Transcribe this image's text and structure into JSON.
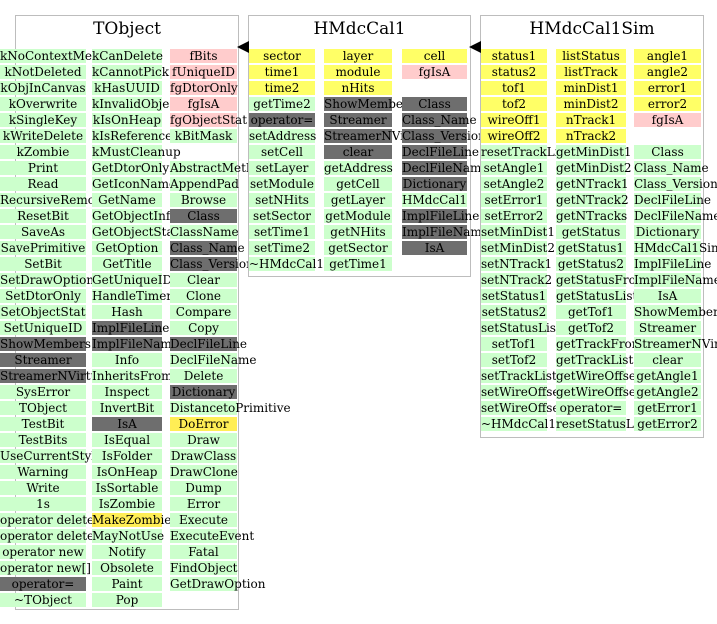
{
  "classes": [
    {
      "name": "TObject",
      "columns": [
        [
          {
            "t": "kNoContextMenu",
            "c": "green"
          },
          {
            "t": "kNotDeleted",
            "c": "green"
          },
          {
            "t": "kObjInCanvas",
            "c": "green"
          },
          {
            "t": "kOverwrite",
            "c": "green"
          },
          {
            "t": "kSingleKey",
            "c": "green"
          },
          {
            "t": "kWriteDelete",
            "c": "green"
          },
          {
            "t": "kZombie",
            "c": "green"
          },
          {
            "t": "Print",
            "c": "green"
          },
          {
            "t": "Read",
            "c": "green"
          },
          {
            "t": "RecursiveRemove",
            "c": "green"
          },
          {
            "t": "ResetBit",
            "c": "green"
          },
          {
            "t": "SaveAs",
            "c": "green"
          },
          {
            "t": "SavePrimitive",
            "c": "green"
          },
          {
            "t": "SetBit",
            "c": "green"
          },
          {
            "t": "SetDrawOption",
            "c": "green"
          },
          {
            "t": "SetDtorOnly",
            "c": "green"
          },
          {
            "t": "SetObjectStat",
            "c": "green"
          },
          {
            "t": "SetUniqueID",
            "c": "green"
          },
          {
            "t": "ShowMembers",
            "c": "grey"
          },
          {
            "t": "Streamer",
            "c": "grey"
          },
          {
            "t": "StreamerNVirtual",
            "c": "grey"
          },
          {
            "t": "SysError",
            "c": "green"
          },
          {
            "t": "TObject",
            "c": "green"
          },
          {
            "t": "TestBit",
            "c": "green"
          },
          {
            "t": "TestBits",
            "c": "green"
          },
          {
            "t": "UseCurrentStyle",
            "c": "green"
          },
          {
            "t": "Warning",
            "c": "green"
          },
          {
            "t": "Write",
            "c": "green"
          },
          {
            "t": "1s",
            "c": "green"
          },
          {
            "t": "operator delete",
            "c": "green"
          },
          {
            "t": "operator delete[]",
            "c": "green"
          },
          {
            "t": "operator new",
            "c": "green"
          },
          {
            "t": "operator new[]",
            "c": "green"
          },
          {
            "t": "operator=",
            "c": "grey"
          },
          {
            "t": "~TObject",
            "c": "green"
          }
        ],
        [
          {
            "t": "kCanDelete",
            "c": "green"
          },
          {
            "t": "kCannotPick",
            "c": "green"
          },
          {
            "t": "kHasUUID",
            "c": "green"
          },
          {
            "t": "kInvalidObject",
            "c": "green"
          },
          {
            "t": "kIsOnHeap",
            "c": "green"
          },
          {
            "t": "kIsReferenced",
            "c": "green"
          },
          {
            "t": "kMustCleanup",
            "c": "green"
          },
          {
            "t": "GetDtorOnly",
            "c": "green"
          },
          {
            "t": "GetIconName",
            "c": "green"
          },
          {
            "t": "GetName",
            "c": "green"
          },
          {
            "t": "GetObjectInfo",
            "c": "green"
          },
          {
            "t": "GetObjectStat",
            "c": "green"
          },
          {
            "t": "GetOption",
            "c": "green"
          },
          {
            "t": "GetTitle",
            "c": "green"
          },
          {
            "t": "GetUniqueID",
            "c": "green"
          },
          {
            "t": "HandleTimer",
            "c": "green"
          },
          {
            "t": "Hash",
            "c": "green"
          },
          {
            "t": "ImplFileLine",
            "c": "grey"
          },
          {
            "t": "ImplFileName",
            "c": "grey"
          },
          {
            "t": "Info",
            "c": "green"
          },
          {
            "t": "InheritsFrom",
            "c": "green"
          },
          {
            "t": "Inspect",
            "c": "green"
          },
          {
            "t": "InvertBit",
            "c": "green"
          },
          {
            "t": "IsA",
            "c": "grey"
          },
          {
            "t": "IsEqual",
            "c": "green"
          },
          {
            "t": "IsFolder",
            "c": "green"
          },
          {
            "t": "IsOnHeap",
            "c": "green"
          },
          {
            "t": "IsSortable",
            "c": "green"
          },
          {
            "t": "IsZombie",
            "c": "green"
          },
          {
            "t": "MakeZombie",
            "c": "orange"
          },
          {
            "t": "MayNotUse",
            "c": "green"
          },
          {
            "t": "Notify",
            "c": "green"
          },
          {
            "t": "Obsolete",
            "c": "green"
          },
          {
            "t": "Paint",
            "c": "green"
          },
          {
            "t": "Pop",
            "c": "green"
          }
        ],
        [
          {
            "t": "fBits",
            "c": "pink"
          },
          {
            "t": "fUniqueID",
            "c": "pink"
          },
          {
            "t": "fgDtorOnly",
            "c": "pink"
          },
          {
            "t": "fgIsA",
            "c": "pink"
          },
          {
            "t": "fgObjectStat",
            "c": "pink"
          },
          {
            "t": "kBitMask",
            "c": "green"
          },
          {
            "t": "",
            "c": "blank"
          },
          {
            "t": "AbstractMethod",
            "c": "green"
          },
          {
            "t": "AppendPad",
            "c": "green"
          },
          {
            "t": "Browse",
            "c": "green"
          },
          {
            "t": "Class",
            "c": "grey"
          },
          {
            "t": "ClassName",
            "c": "green"
          },
          {
            "t": "Class_Name",
            "c": "grey"
          },
          {
            "t": "Class_Version",
            "c": "grey"
          },
          {
            "t": "Clear",
            "c": "green"
          },
          {
            "t": "Clone",
            "c": "green"
          },
          {
            "t": "Compare",
            "c": "green"
          },
          {
            "t": "Copy",
            "c": "green"
          },
          {
            "t": "DeclFileLine",
            "c": "grey"
          },
          {
            "t": "DeclFileName",
            "c": "green"
          },
          {
            "t": "Delete",
            "c": "green"
          },
          {
            "t": "Dictionary",
            "c": "grey"
          },
          {
            "t": "DistancetoPrimitive",
            "c": "green"
          },
          {
            "t": "DoError",
            "c": "orange"
          },
          {
            "t": "Draw",
            "c": "green"
          },
          {
            "t": "DrawClass",
            "c": "green"
          },
          {
            "t": "DrawClone",
            "c": "green"
          },
          {
            "t": "Dump",
            "c": "green"
          },
          {
            "t": "Error",
            "c": "green"
          },
          {
            "t": "Execute",
            "c": "green"
          },
          {
            "t": "ExecuteEvent",
            "c": "green"
          },
          {
            "t": "Fatal",
            "c": "green"
          },
          {
            "t": "FindObject",
            "c": "green"
          },
          {
            "t": "GetDrawOption",
            "c": "green"
          }
        ]
      ]
    },
    {
      "name": "HMdcCal1",
      "columns": [
        [
          {
            "t": "sector",
            "c": "yellow"
          },
          {
            "t": "time1",
            "c": "yellow"
          },
          {
            "t": "time2",
            "c": "yellow"
          },
          {
            "t": "getTime2",
            "c": "green"
          },
          {
            "t": "operator=",
            "c": "grey"
          },
          {
            "t": "setAddress",
            "c": "green"
          },
          {
            "t": "setCell",
            "c": "green"
          },
          {
            "t": "setLayer",
            "c": "green"
          },
          {
            "t": "setModule",
            "c": "green"
          },
          {
            "t": "setNHits",
            "c": "green"
          },
          {
            "t": "setSector",
            "c": "green"
          },
          {
            "t": "setTime1",
            "c": "green"
          },
          {
            "t": "setTime2",
            "c": "green"
          },
          {
            "t": "~HMdcCal1",
            "c": "green"
          }
        ],
        [
          {
            "t": "layer",
            "c": "yellow"
          },
          {
            "t": "module",
            "c": "yellow"
          },
          {
            "t": "nHits",
            "c": "yellow"
          },
          {
            "t": "ShowMembers",
            "c": "grey"
          },
          {
            "t": "Streamer",
            "c": "grey"
          },
          {
            "t": "StreamerNVirtual",
            "c": "grey"
          },
          {
            "t": "clear",
            "c": "grey"
          },
          {
            "t": "getAddress",
            "c": "green"
          },
          {
            "t": "getCell",
            "c": "green"
          },
          {
            "t": "getLayer",
            "c": "green"
          },
          {
            "t": "getModule",
            "c": "green"
          },
          {
            "t": "getNHits",
            "c": "green"
          },
          {
            "t": "getSector",
            "c": "green"
          },
          {
            "t": "getTime1",
            "c": "green"
          }
        ],
        [
          {
            "t": "cell",
            "c": "yellow"
          },
          {
            "t": "fgIsA",
            "c": "pink"
          },
          {
            "t": "",
            "c": "blank"
          },
          {
            "t": "Class",
            "c": "grey"
          },
          {
            "t": "Class_Name",
            "c": "grey"
          },
          {
            "t": "Class_Version",
            "c": "grey"
          },
          {
            "t": "DeclFileLine",
            "c": "grey"
          },
          {
            "t": "DeclFileName",
            "c": "grey"
          },
          {
            "t": "Dictionary",
            "c": "grey"
          },
          {
            "t": "HMdcCal1",
            "c": "green"
          },
          {
            "t": "ImplFileLine",
            "c": "grey"
          },
          {
            "t": "ImplFileName",
            "c": "grey"
          },
          {
            "t": "IsA",
            "c": "grey"
          }
        ]
      ]
    },
    {
      "name": "HMdcCal1Sim",
      "columns": [
        [
          {
            "t": "status1",
            "c": "yellow"
          },
          {
            "t": "status2",
            "c": "yellow"
          },
          {
            "t": "tof1",
            "c": "yellow"
          },
          {
            "t": "tof2",
            "c": "yellow"
          },
          {
            "t": "wireOff1",
            "c": "yellow"
          },
          {
            "t": "wireOff2",
            "c": "yellow"
          },
          {
            "t": "resetTrackList",
            "c": "green"
          },
          {
            "t": "setAngle1",
            "c": "green"
          },
          {
            "t": "setAngle2",
            "c": "green"
          },
          {
            "t": "setError1",
            "c": "green"
          },
          {
            "t": "setError2",
            "c": "green"
          },
          {
            "t": "setMinDist1",
            "c": "green"
          },
          {
            "t": "setMinDist2",
            "c": "green"
          },
          {
            "t": "setNTrack1",
            "c": "green"
          },
          {
            "t": "setNTrack2",
            "c": "green"
          },
          {
            "t": "setStatus1",
            "c": "green"
          },
          {
            "t": "setStatus2",
            "c": "green"
          },
          {
            "t": "setStatusList",
            "c": "green"
          },
          {
            "t": "setTof1",
            "c": "green"
          },
          {
            "t": "setTof2",
            "c": "green"
          },
          {
            "t": "setTrackList",
            "c": "green"
          },
          {
            "t": "setWireOffset1",
            "c": "green"
          },
          {
            "t": "setWireOffset2",
            "c": "green"
          },
          {
            "t": "~HMdcCal1Sim",
            "c": "green"
          }
        ],
        [
          {
            "t": "listStatus",
            "c": "yellow"
          },
          {
            "t": "listTrack",
            "c": "yellow"
          },
          {
            "t": "minDist1",
            "c": "yellow"
          },
          {
            "t": "minDist2",
            "c": "yellow"
          },
          {
            "t": "nTrack1",
            "c": "yellow"
          },
          {
            "t": "nTrack2",
            "c": "yellow"
          },
          {
            "t": "getMinDist1",
            "c": "green"
          },
          {
            "t": "getMinDist2",
            "c": "green"
          },
          {
            "t": "getNTrack1",
            "c": "green"
          },
          {
            "t": "getNTrack2",
            "c": "green"
          },
          {
            "t": "getNTracks",
            "c": "green"
          },
          {
            "t": "getStatus",
            "c": "green"
          },
          {
            "t": "getStatus1",
            "c": "green"
          },
          {
            "t": "getStatus2",
            "c": "green"
          },
          {
            "t": "getStatusFromList",
            "c": "green"
          },
          {
            "t": "getStatusList",
            "c": "green"
          },
          {
            "t": "getTof1",
            "c": "green"
          },
          {
            "t": "getTof2",
            "c": "green"
          },
          {
            "t": "getTrackFromList",
            "c": "green"
          },
          {
            "t": "getTrackList",
            "c": "green"
          },
          {
            "t": "getWireOffset1",
            "c": "green"
          },
          {
            "t": "getWireOffset2",
            "c": "green"
          },
          {
            "t": "operator=",
            "c": "green"
          },
          {
            "t": "resetStatusList",
            "c": "green"
          }
        ],
        [
          {
            "t": "angle1",
            "c": "yellow"
          },
          {
            "t": "angle2",
            "c": "yellow"
          },
          {
            "t": "error1",
            "c": "yellow"
          },
          {
            "t": "error2",
            "c": "yellow"
          },
          {
            "t": "fgIsA",
            "c": "pink"
          },
          {
            "t": "",
            "c": "blank"
          },
          {
            "t": "Class",
            "c": "green"
          },
          {
            "t": "Class_Name",
            "c": "green"
          },
          {
            "t": "Class_Version",
            "c": "green"
          },
          {
            "t": "DeclFileLine",
            "c": "green"
          },
          {
            "t": "DeclFileName",
            "c": "green"
          },
          {
            "t": "Dictionary",
            "c": "green"
          },
          {
            "t": "HMdcCal1Sim",
            "c": "green"
          },
          {
            "t": "ImplFileLine",
            "c": "green"
          },
          {
            "t": "ImplFileName",
            "c": "green"
          },
          {
            "t": "IsA",
            "c": "green"
          },
          {
            "t": "ShowMembers",
            "c": "green"
          },
          {
            "t": "Streamer",
            "c": "green"
          },
          {
            "t": "StreamerNVirtual",
            "c": "green"
          },
          {
            "t": "clear",
            "c": "green"
          },
          {
            "t": "getAngle1",
            "c": "green"
          },
          {
            "t": "getAngle2",
            "c": "green"
          },
          {
            "t": "getError1",
            "c": "green"
          },
          {
            "t": "getError2",
            "c": "green"
          }
        ]
      ]
    }
  ],
  "colors": {
    "green": "#ccffcc",
    "yellow": "#ffff66",
    "pink": "#ffcccc",
    "grey": "#6e6e6e",
    "orange": "#ffee55"
  }
}
